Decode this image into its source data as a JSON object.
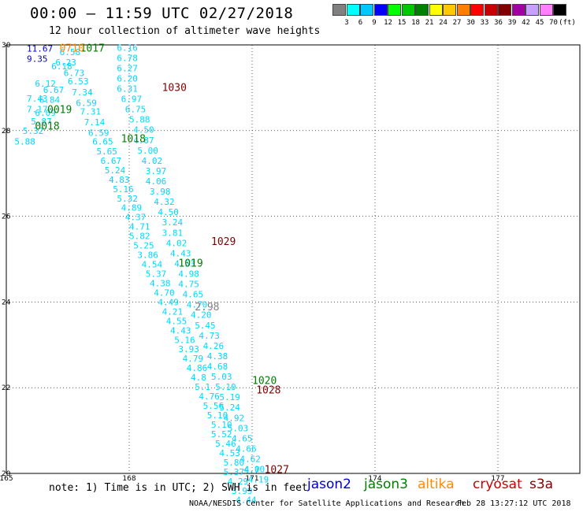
{
  "title": "00:00 – 11:59 UTC 02/27/2018",
  "subtitle": "12 hour collection of altimeter wave heights",
  "scale": {
    "colors": [
      "#808080",
      "#00ffff",
      "#00c8ff",
      "#0000ff",
      "#00ff00",
      "#00c800",
      "#008000",
      "#ffff00",
      "#ffc800",
      "#ff8000",
      "#ff0000",
      "#c80000",
      "#800000",
      "#a000a0",
      "#c8a0ff",
      "#ff80ff",
      "#000000"
    ],
    "labels": [
      "3",
      "6",
      "9",
      "12",
      "15",
      "18",
      "21",
      "24",
      "27",
      "30",
      "33",
      "36",
      "39",
      "42",
      "45",
      "70"
    ],
    "unit": "(ft)"
  },
  "note": "note: 1) Time is in UTC; 2) SWH is in feet",
  "credit": "NOAA/NESDIS Center for Satellite Applications and Research",
  "stamp": "Feb 28 13:27:12 UTC 2018",
  "legend": [
    {
      "name": "jason2",
      "color": "#0000cc"
    },
    {
      "name": "jason3",
      "color": "#008000"
    },
    {
      "name": "altika",
      "color": "#ff8c00"
    },
    {
      "name": "cryosat",
      "color": "#cc0000"
    },
    {
      "name": "s3a",
      "color": "#800000"
    }
  ],
  "chart_data": {
    "type": "scatter",
    "title": "00:00 – 11:59 UTC 02/27/2018",
    "xlim": [
      165,
      179
    ],
    "ylim": [
      20,
      30
    ],
    "x_ticks": [
      "165",
      "168",
      "171",
      "174",
      "177"
    ],
    "y_ticks": [
      "30",
      "28",
      "26",
      "24",
      "22",
      "20"
    ],
    "y_tick_values": [
      30,
      28,
      26,
      24,
      22,
      20
    ],
    "x_tick_values": [
      165,
      168,
      171,
      174,
      177
    ],
    "grid": true,
    "series": [
      {
        "name": "jason3",
        "color": "#00d8ff",
        "points": [
          {
            "x": 167.7,
            "y": 29.94,
            "v": "6.16"
          },
          {
            "x": 167.7,
            "y": 29.7,
            "v": "6.78"
          },
          {
            "x": 167.7,
            "y": 29.46,
            "v": "6.27"
          },
          {
            "x": 167.7,
            "y": 29.22,
            "v": "6.20"
          },
          {
            "x": 167.7,
            "y": 28.98,
            "v": "6.31"
          },
          {
            "x": 167.8,
            "y": 28.74,
            "v": "6.97"
          },
          {
            "x": 167.9,
            "y": 28.5,
            "v": "6.75"
          },
          {
            "x": 168.0,
            "y": 28.26,
            "v": "5.88"
          },
          {
            "x": 168.1,
            "y": 28.02,
            "v": "4.50"
          },
          {
            "x": 168.1,
            "y": 27.78,
            "v": "4.87"
          },
          {
            "x": 168.2,
            "y": 27.54,
            "v": "5.00"
          },
          {
            "x": 168.3,
            "y": 27.3,
            "v": "4.02"
          },
          {
            "x": 168.4,
            "y": 27.06,
            "v": "3.97"
          },
          {
            "x": 168.4,
            "y": 26.82,
            "v": "4.06"
          },
          {
            "x": 168.5,
            "y": 26.58,
            "v": "3.98"
          },
          {
            "x": 168.6,
            "y": 26.34,
            "v": "4.32"
          },
          {
            "x": 168.7,
            "y": 26.1,
            "v": "4.50"
          },
          {
            "x": 168.8,
            "y": 25.86,
            "v": "3.24"
          },
          {
            "x": 168.8,
            "y": 25.62,
            "v": "3.81"
          },
          {
            "x": 168.9,
            "y": 25.38,
            "v": "4.02"
          },
          {
            "x": 169.0,
            "y": 25.14,
            "v": "4.43"
          },
          {
            "x": 169.1,
            "y": 24.9,
            "v": "4.53"
          },
          {
            "x": 169.2,
            "y": 24.66,
            "v": "4.98"
          },
          {
            "x": 169.2,
            "y": 24.42,
            "v": "4.75"
          },
          {
            "x": 169.3,
            "y": 24.18,
            "v": "4.65"
          },
          {
            "x": 169.4,
            "y": 23.94,
            "v": "4.70"
          },
          {
            "x": 169.5,
            "y": 23.7,
            "v": "4.20"
          },
          {
            "x": 169.6,
            "y": 23.46,
            "v": "5.45"
          },
          {
            "x": 169.7,
            "y": 23.22,
            "v": "4.73"
          },
          {
            "x": 169.8,
            "y": 22.98,
            "v": "4.26"
          },
          {
            "x": 169.9,
            "y": 22.74,
            "v": "4.38"
          },
          {
            "x": 169.9,
            "y": 22.5,
            "v": "4.68"
          },
          {
            "x": 170.0,
            "y": 22.26,
            "v": "5.03"
          },
          {
            "x": 170.1,
            "y": 22.02,
            "v": "5.10"
          },
          {
            "x": 170.2,
            "y": 21.78,
            "v": "5.19"
          },
          {
            "x": 170.2,
            "y": 21.54,
            "v": "5.24"
          },
          {
            "x": 170.3,
            "y": 21.3,
            "v": "4.92"
          },
          {
            "x": 170.4,
            "y": 21.06,
            "v": "5.03"
          },
          {
            "x": 170.5,
            "y": 20.82,
            "v": "4.65"
          },
          {
            "x": 170.6,
            "y": 20.58,
            "v": "4.66"
          },
          {
            "x": 170.7,
            "y": 20.34,
            "v": "4.62"
          },
          {
            "x": 170.8,
            "y": 20.1,
            "v": "4.00"
          },
          {
            "x": 170.9,
            "y": 19.86,
            "v": "4.19"
          },
          {
            "x": 170.8,
            "y": 20.08,
            "v": "4.7"
          },
          {
            "x": 166.3,
            "y": 29.83,
            "v": "6.58"
          },
          {
            "x": 166.2,
            "y": 29.6,
            "v": "6.23"
          },
          {
            "x": 166.4,
            "y": 29.35,
            "v": "6.73"
          },
          {
            "x": 166.1,
            "y": 29.5,
            "v": "6.18"
          },
          {
            "x": 166.5,
            "y": 29.15,
            "v": "6.53"
          },
          {
            "x": 165.7,
            "y": 29.1,
            "v": "6.12"
          },
          {
            "x": 165.9,
            "y": 28.95,
            "v": "6.67"
          },
          {
            "x": 166.6,
            "y": 28.9,
            "v": "7.34"
          },
          {
            "x": 165.5,
            "y": 28.75,
            "v": "7.43"
          },
          {
            "x": 165.8,
            "y": 28.72,
            "v": "6.84"
          },
          {
            "x": 166.7,
            "y": 28.65,
            "v": "6.59"
          },
          {
            "x": 165.5,
            "y": 28.5,
            "v": "7.17"
          },
          {
            "x": 165.7,
            "y": 28.42,
            "v": "6.09"
          },
          {
            "x": 166.8,
            "y": 28.45,
            "v": "7.31"
          },
          {
            "x": 165.6,
            "y": 28.22,
            "v": "5.87"
          },
          {
            "x": 166.9,
            "y": 28.2,
            "v": "7.14"
          },
          {
            "x": 165.4,
            "y": 28.0,
            "v": "5.32"
          },
          {
            "x": 167.0,
            "y": 27.95,
            "v": "6.59"
          },
          {
            "x": 165.2,
            "y": 27.75,
            "v": "5.88"
          },
          {
            "x": 167.1,
            "y": 27.75,
            "v": "6.65"
          },
          {
            "x": 167.2,
            "y": 27.52,
            "v": "5.65"
          },
          {
            "x": 167.3,
            "y": 27.3,
            "v": "6.67"
          },
          {
            "x": 167.4,
            "y": 27.08,
            "v": "5.24"
          },
          {
            "x": 167.5,
            "y": 26.86,
            "v": "4.83"
          },
          {
            "x": 167.6,
            "y": 26.64,
            "v": "5.16"
          },
          {
            "x": 167.7,
            "y": 26.42,
            "v": "5.32"
          },
          {
            "x": 167.8,
            "y": 26.2,
            "v": "4.89"
          },
          {
            "x": 167.9,
            "y": 25.98,
            "v": "4.37"
          },
          {
            "x": 168.0,
            "y": 25.76,
            "v": "4.71"
          },
          {
            "x": 168.0,
            "y": 25.54,
            "v": "5.82"
          },
          {
            "x": 168.1,
            "y": 25.32,
            "v": "5.25"
          },
          {
            "x": 168.2,
            "y": 25.1,
            "v": "3.86"
          },
          {
            "x": 168.3,
            "y": 24.88,
            "v": "4.54"
          },
          {
            "x": 168.4,
            "y": 24.66,
            "v": "5.37"
          },
          {
            "x": 168.5,
            "y": 24.44,
            "v": "4.38"
          },
          {
            "x": 168.6,
            "y": 24.22,
            "v": "4.70"
          },
          {
            "x": 168.7,
            "y": 24.0,
            "v": "4.49"
          },
          {
            "x": 168.8,
            "y": 23.78,
            "v": "4.21"
          },
          {
            "x": 168.9,
            "y": 23.56,
            "v": "4.55"
          },
          {
            "x": 169.0,
            "y": 23.34,
            "v": "4.43"
          },
          {
            "x": 169.1,
            "y": 23.12,
            "v": "5.16"
          },
          {
            "x": 169.2,
            "y": 22.9,
            "v": "3.93"
          },
          {
            "x": 169.3,
            "y": 22.68,
            "v": "4.79"
          },
          {
            "x": 169.4,
            "y": 22.46,
            "v": "4.86"
          },
          {
            "x": 169.5,
            "y": 22.24,
            "v": "4.8"
          },
          {
            "x": 169.6,
            "y": 22.02,
            "v": "5.1"
          },
          {
            "x": 169.7,
            "y": 21.8,
            "v": "4.76"
          },
          {
            "x": 169.8,
            "y": 21.58,
            "v": "5.56"
          },
          {
            "x": 169.9,
            "y": 21.36,
            "v": "5.10"
          },
          {
            "x": 170.0,
            "y": 21.14,
            "v": "5.10"
          },
          {
            "x": 170.0,
            "y": 20.92,
            "v": "5.52"
          },
          {
            "x": 170.1,
            "y": 20.7,
            "v": "5.46"
          },
          {
            "x": 170.2,
            "y": 20.48,
            "v": "4.53"
          },
          {
            "x": 170.3,
            "y": 20.26,
            "v": "5.80"
          },
          {
            "x": 170.3,
            "y": 20.04,
            "v": "5.37"
          },
          {
            "x": 170.4,
            "y": 19.82,
            "v": "4.29"
          },
          {
            "x": 170.5,
            "y": 19.6,
            "v": "3.99"
          },
          {
            "x": 170.6,
            "y": 19.38,
            "v": "4.44"
          }
        ]
      },
      {
        "name": "jason2",
        "color": "#0000cc",
        "points": [
          {
            "x": 165.5,
            "y": 29.92,
            "v": "11.67"
          },
          {
            "x": 165.5,
            "y": 29.68,
            "v": "9.35"
          }
        ]
      }
    ],
    "annotations": [
      {
        "x": 166.8,
        "y": 29.92,
        "text": "1017",
        "color": "#008000"
      },
      {
        "x": 166.3,
        "y": 29.92,
        "text": "0710",
        "color": "#ff8c00"
      },
      {
        "x": 168.8,
        "y": 29.0,
        "text": "1030",
        "color": "#800000"
      },
      {
        "x": 166.0,
        "y": 28.48,
        "text": "0019",
        "color": "#008000"
      },
      {
        "x": 165.7,
        "y": 28.1,
        "text": "0018",
        "color": "#008000"
      },
      {
        "x": 167.8,
        "y": 27.8,
        "text": "1018",
        "color": "#008000"
      },
      {
        "x": 170.0,
        "y": 25.4,
        "text": "1029",
        "color": "#800000"
      },
      {
        "x": 169.2,
        "y": 24.9,
        "text": "1019",
        "color": "#008000"
      },
      {
        "x": 169.6,
        "y": 23.88,
        "text": "2.98",
        "color": "#808080"
      },
      {
        "x": 171.0,
        "y": 22.16,
        "text": "1020",
        "color": "#008000"
      },
      {
        "x": 171.1,
        "y": 21.94,
        "text": "1028",
        "color": "#800000"
      },
      {
        "x": 171.3,
        "y": 20.08,
        "text": "1027",
        "color": "#800000"
      }
    ]
  }
}
